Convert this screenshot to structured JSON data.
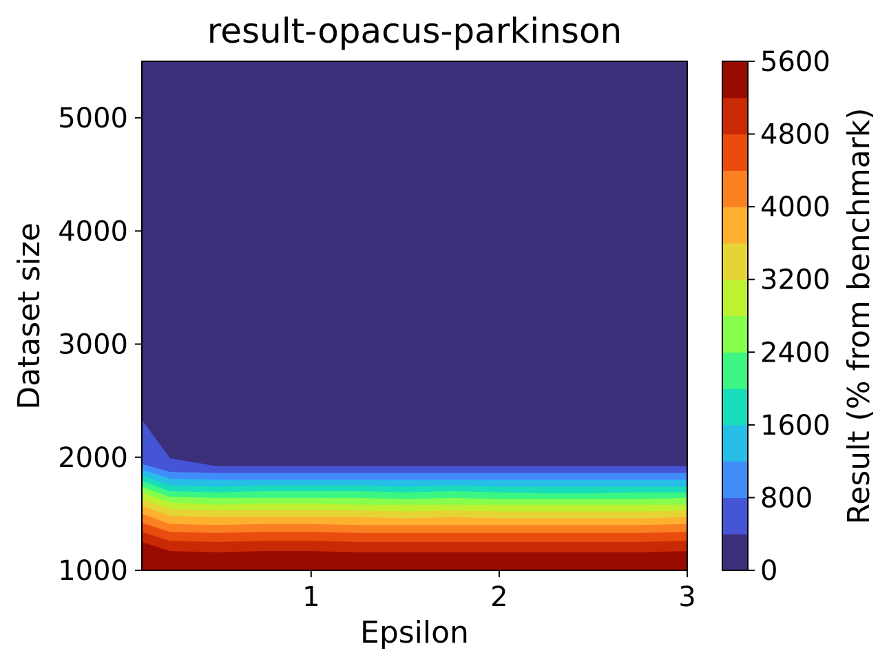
{
  "chart_data": {
    "type": "heatmap",
    "subtype": "filled-contour",
    "title": "result-opacus-parkinson",
    "xlabel": "Epsilon",
    "ylabel": "Dataset size",
    "xlim": [
      0.1,
      3
    ],
    "ylim": [
      1000,
      5500
    ],
    "xticks": [
      1,
      2,
      3
    ],
    "yticks": [
      1000,
      2000,
      3000,
      4000,
      5000
    ],
    "colorbar": {
      "label": "Result (% from benchmark)",
      "range": [
        0,
        5600
      ],
      "ticks": [
        0,
        800,
        1600,
        2400,
        3200,
        4000,
        4800,
        5600
      ],
      "levels": [
        0,
        400,
        800,
        1200,
        1600,
        2000,
        2400,
        2800,
        3200,
        3600,
        4000,
        4400,
        4800,
        5200,
        5600
      ],
      "colors": [
        "#3b2f7a",
        "#4655d6",
        "#418cf9",
        "#26bde6",
        "#19dcbb",
        "#3cf583",
        "#87fe4d",
        "#bff133",
        "#e6d436",
        "#feb030",
        "#fb8022",
        "#ea4c0e",
        "#c92904",
        "#990b01"
      ]
    },
    "contour_boundaries": [
      {
        "level": 400,
        "x": [
          0.1,
          0.25,
          0.5,
          0.75,
          1,
          1.25,
          1.5,
          1.75,
          2,
          2.25,
          2.5,
          2.75,
          3
        ],
        "y": [
          2330,
          1990,
          1920,
          1920,
          1920,
          1920,
          1920,
          1920,
          1920,
          1920,
          1920,
          1920,
          1920
        ]
      },
      {
        "level": 800,
        "x": [
          0.1,
          0.25,
          0.5,
          0.75,
          1,
          1.25,
          1.5,
          1.75,
          2,
          2.25,
          2.5,
          2.75,
          3
        ],
        "y": [
          1940,
          1870,
          1860,
          1860,
          1860,
          1860,
          1860,
          1860,
          1860,
          1860,
          1860,
          1860,
          1860
        ]
      },
      {
        "level": 1200,
        "x": [
          0.1,
          0.25,
          0.5,
          0.75,
          1,
          1.25,
          1.5,
          1.75,
          2,
          2.25,
          2.5,
          2.75,
          3
        ],
        "y": [
          1890,
          1810,
          1800,
          1800,
          1800,
          1800,
          1800,
          1800,
          1800,
          1800,
          1800,
          1800,
          1800
        ]
      },
      {
        "level": 1600,
        "x": [
          0.1,
          0.25,
          0.5,
          0.75,
          1,
          1.25,
          1.5,
          1.75,
          2,
          2.25,
          2.5,
          2.75,
          3
        ],
        "y": [
          1840,
          1750,
          1740,
          1750,
          1750,
          1750,
          1740,
          1750,
          1740,
          1740,
          1740,
          1740,
          1740
        ]
      },
      {
        "level": 2000,
        "x": [
          0.1,
          0.25,
          0.5,
          0.75,
          1,
          1.25,
          1.5,
          1.75,
          2,
          2.25,
          2.5,
          2.75,
          3
        ],
        "y": [
          1790,
          1700,
          1690,
          1700,
          1700,
          1700,
          1690,
          1700,
          1690,
          1680,
          1680,
          1690,
          1690
        ]
      },
      {
        "level": 2400,
        "x": [
          0.1,
          0.25,
          0.5,
          0.75,
          1,
          1.25,
          1.5,
          1.75,
          2,
          2.25,
          2.5,
          2.75,
          3
        ],
        "y": [
          1740,
          1650,
          1640,
          1640,
          1640,
          1640,
          1630,
          1640,
          1630,
          1630,
          1630,
          1630,
          1640
        ]
      },
      {
        "level": 2800,
        "x": [
          0.1,
          0.25,
          0.5,
          0.75,
          1,
          1.25,
          1.5,
          1.75,
          2,
          2.25,
          2.5,
          2.75,
          3
        ],
        "y": [
          1690,
          1600,
          1580,
          1590,
          1590,
          1580,
          1580,
          1580,
          1580,
          1580,
          1580,
          1580,
          1580
        ]
      },
      {
        "level": 3200,
        "x": [
          0.1,
          0.25,
          0.5,
          0.75,
          1,
          1.25,
          1.5,
          1.75,
          2,
          2.25,
          2.5,
          2.75,
          3
        ],
        "y": [
          1630,
          1540,
          1530,
          1530,
          1530,
          1530,
          1520,
          1530,
          1520,
          1520,
          1520,
          1520,
          1530
        ]
      },
      {
        "level": 3600,
        "x": [
          0.1,
          0.25,
          0.5,
          0.75,
          1,
          1.25,
          1.5,
          1.75,
          2,
          2.25,
          2.5,
          2.75,
          3
        ],
        "y": [
          1570,
          1480,
          1470,
          1470,
          1470,
          1470,
          1460,
          1470,
          1460,
          1460,
          1460,
          1460,
          1470
        ]
      },
      {
        "level": 4000,
        "x": [
          0.1,
          0.25,
          0.5,
          0.75,
          1,
          1.25,
          1.5,
          1.75,
          2,
          2.25,
          2.5,
          2.75,
          3
        ],
        "y": [
          1500,
          1410,
          1400,
          1410,
          1410,
          1400,
          1400,
          1400,
          1400,
          1400,
          1400,
          1400,
          1410
        ]
      },
      {
        "level": 4400,
        "x": [
          0.1,
          0.25,
          0.5,
          0.75,
          1,
          1.25,
          1.5,
          1.75,
          2,
          2.25,
          2.5,
          2.75,
          3
        ],
        "y": [
          1420,
          1340,
          1330,
          1340,
          1340,
          1330,
          1330,
          1330,
          1330,
          1330,
          1330,
          1330,
          1340
        ]
      },
      {
        "level": 4800,
        "x": [
          0.1,
          0.25,
          0.5,
          0.75,
          1,
          1.25,
          1.5,
          1.75,
          2,
          2.25,
          2.5,
          2.75,
          3
        ],
        "y": [
          1340,
          1260,
          1250,
          1260,
          1260,
          1250,
          1250,
          1250,
          1250,
          1250,
          1250,
          1250,
          1260
        ]
      },
      {
        "level": 5200,
        "x": [
          0.1,
          0.25,
          0.5,
          0.75,
          1,
          1.25,
          1.5,
          1.75,
          2,
          2.25,
          2.5,
          2.75,
          3
        ],
        "y": [
          1250,
          1170,
          1160,
          1170,
          1170,
          1160,
          1160,
          1160,
          1160,
          1160,
          1160,
          1160,
          1170
        ]
      },
      {
        "level": 5600,
        "x": [
          0.1,
          0.25,
          0.5,
          0.75,
          1,
          1.25,
          1.5,
          1.75,
          2,
          2.25,
          2.5,
          2.75,
          3
        ],
        "y": [
          1140,
          1070,
          1060,
          1070,
          1070,
          1060,
          1060,
          1060,
          1060,
          1060,
          1060,
          1060,
          1070
        ]
      }
    ]
  }
}
